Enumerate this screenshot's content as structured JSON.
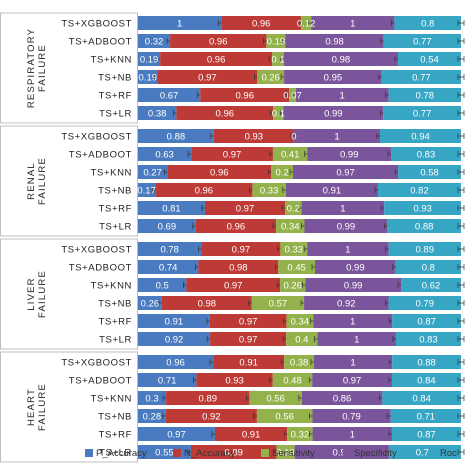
{
  "chart_data": {
    "type": "bar",
    "orientation": "horizontal",
    "stacked": true,
    "series_names": [
      "P_Accuracy",
      "N_Accuracy",
      "Sensitivity",
      "Specificity",
      "Roc"
    ],
    "colors": [
      "#4a7bc0",
      "#bd3a37",
      "#93b24b",
      "#7b559c",
      "#37a5c4"
    ],
    "legend_position": "bottom",
    "groups": [
      {
        "name": "RESPIRATORY FAILURE",
        "rows": [
          {
            "label": "TS+XGBOOST",
            "values": [
              1,
              0.96,
              0.12,
              1,
              0.8
            ]
          },
          {
            "label": "TS+ADBOOT",
            "values": [
              0.32,
              0.96,
              0.19,
              0.98,
              0.77
            ]
          },
          {
            "label": "TS+KNN",
            "values": [
              0.19,
              0.96,
              0.1,
              0.98,
              0.54
            ]
          },
          {
            "label": "TS+NB",
            "values": [
              0.19,
              0.97,
              0.26,
              0.95,
              0.77
            ]
          },
          {
            "label": "TS+RF",
            "values": [
              0.67,
              0.96,
              0.07,
              1,
              0.78
            ]
          },
          {
            "label": "TS+LR",
            "values": [
              0.38,
              0.96,
              0.1,
              0.99,
              0.77
            ]
          }
        ]
      },
      {
        "name": "RENAL FAILURE",
        "rows": [
          {
            "label": "TS+XGBOOST",
            "values": [
              0.88,
              0.93,
              0,
              1,
              0.94
            ]
          },
          {
            "label": "TS+ADBOOT",
            "values": [
              0.63,
              0.97,
              0.41,
              0.99,
              0.83
            ]
          },
          {
            "label": "TS+KNN",
            "values": [
              0.27,
              0.96,
              0.2,
              0.97,
              0.58
            ]
          },
          {
            "label": "TS+NB",
            "values": [
              0.17,
              0.96,
              0.33,
              0.91,
              0.82
            ]
          },
          {
            "label": "TS+RF",
            "values": [
              0.81,
              0.97,
              0.2,
              1,
              0.93
            ]
          },
          {
            "label": "TS+LR",
            "values": [
              0.69,
              0.96,
              0.34,
              0.99,
              0.88
            ]
          }
        ]
      },
      {
        "name": "LIVER FAILURE",
        "rows": [
          {
            "label": "TS+XGBOOST",
            "values": [
              0.78,
              0.97,
              0.33,
              1,
              0.89
            ]
          },
          {
            "label": "TS+ADBOOT",
            "values": [
              0.74,
              0.98,
              0.45,
              0.99,
              0.8
            ]
          },
          {
            "label": "TS+KNN",
            "values": [
              0.5,
              0.97,
              0.26,
              0.99,
              0.62
            ]
          },
          {
            "label": "TS+NB",
            "values": [
              0.26,
              0.98,
              0.57,
              0.92,
              0.79
            ]
          },
          {
            "label": "TS+RF",
            "values": [
              0.91,
              0.97,
              0.34,
              1,
              0.87
            ]
          },
          {
            "label": "TS+LR",
            "values": [
              0.92,
              0.97,
              0.4,
              1,
              0.83
            ]
          }
        ]
      },
      {
        "name": "HEART FAILURE",
        "rows": [
          {
            "label": "TS+XGBOOST",
            "values": [
              0.96,
              0.91,
              0.38,
              1,
              0.88
            ]
          },
          {
            "label": "TS+ADBOOT",
            "values": [
              0.71,
              0.93,
              0.48,
              0.97,
              0.84
            ]
          },
          {
            "label": "TS+KNN",
            "values": [
              0.3,
              0.89,
              0.56,
              0.86,
              0.84
            ]
          },
          {
            "label": "TS+NB",
            "values": [
              0.28,
              0.92,
              0.56,
              0.79,
              0.71
            ]
          },
          {
            "label": "TS+RF",
            "values": [
              0.97,
              0.91,
              0.32,
              1,
              0.87
            ]
          },
          {
            "label": "TS+LR",
            "values": [
              0.55,
              0.89,
              0.19,
              0.98,
              0.75
            ]
          }
        ]
      }
    ]
  }
}
